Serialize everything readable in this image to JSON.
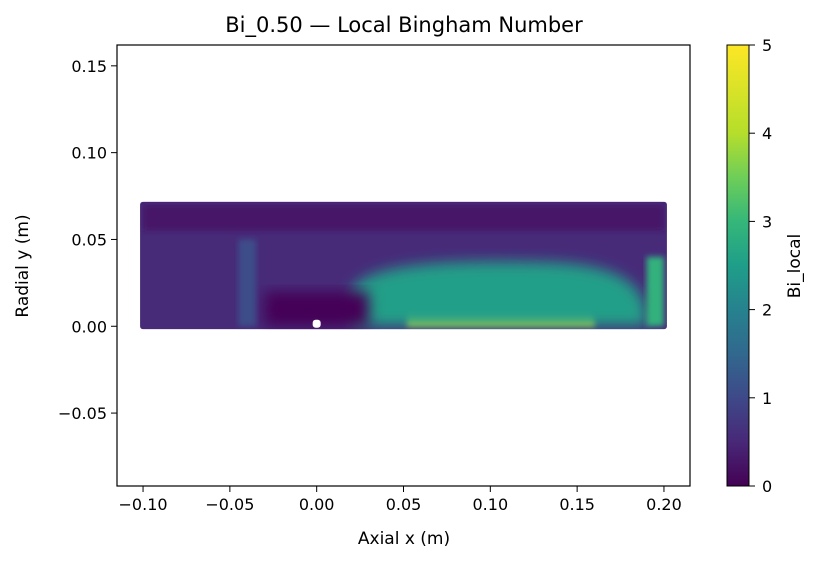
{
  "chart_data": {
    "type": "heatmap",
    "title": "Bi_0.50 — Local Bingham Number",
    "xlabel": "Axial x (m)",
    "ylabel": "Radial y (m)",
    "xlim": [
      -0.115,
      0.215
    ],
    "ylim": [
      -0.092,
      0.162
    ],
    "x_ticks": [
      {
        "value": -0.1,
        "label": "−0.10"
      },
      {
        "value": -0.05,
        "label": "−0.05"
      },
      {
        "value": 0.0,
        "label": "0.00"
      },
      {
        "value": 0.05,
        "label": "0.05"
      },
      {
        "value": 0.1,
        "label": "0.10"
      },
      {
        "value": 0.15,
        "label": "0.15"
      },
      {
        "value": 0.2,
        "label": "0.20"
      }
    ],
    "y_ticks": [
      {
        "value": -0.05,
        "label": "−0.05"
      },
      {
        "value": 0.0,
        "label": "0.00"
      },
      {
        "value": 0.05,
        "label": "0.05"
      },
      {
        "value": 0.1,
        "label": "0.10"
      },
      {
        "value": 0.15,
        "label": "0.15"
      }
    ],
    "domain": {
      "x": [
        -0.1,
        0.2
      ],
      "y": [
        0.0,
        0.07
      ]
    },
    "colormap": "viridis",
    "colorbar": {
      "label": "Bi_local",
      "min": 0,
      "max": 5,
      "ticks": [
        {
          "value": 0,
          "label": "0"
        },
        {
          "value": 1,
          "label": "1"
        },
        {
          "value": 2,
          "label": "2"
        },
        {
          "value": 3,
          "label": "3"
        },
        {
          "value": 4,
          "label": "4"
        },
        {
          "value": 5,
          "label": "5"
        }
      ]
    },
    "field_regions": [
      {
        "name": "background",
        "value": 0.6
      },
      {
        "name": "top-band",
        "x": [
          -0.1,
          0.2
        ],
        "y": [
          0.055,
          0.07
        ],
        "value": 0.3
      },
      {
        "name": "yield-plateau",
        "x": [
          0.052,
          0.16
        ],
        "y": [
          0.0,
          0.018
        ],
        "value": 5.0
      },
      {
        "name": "shear-halo",
        "x": [
          0.02,
          0.19
        ],
        "y": [
          0.0,
          0.037
        ],
        "value": 2.8
      },
      {
        "name": "obstacle-low",
        "x": [
          -0.03,
          0.03
        ],
        "y": [
          0.0,
          0.02
        ],
        "value": 0.05
      },
      {
        "name": "inlet-streak",
        "x": [
          -0.045,
          -0.035
        ],
        "y": [
          0.0,
          0.05
        ],
        "value": 1.2
      },
      {
        "name": "outlet-edge",
        "x": [
          0.19,
          0.2
        ],
        "y": [
          0.0,
          0.04
        ],
        "value": 3.2
      }
    ]
  }
}
